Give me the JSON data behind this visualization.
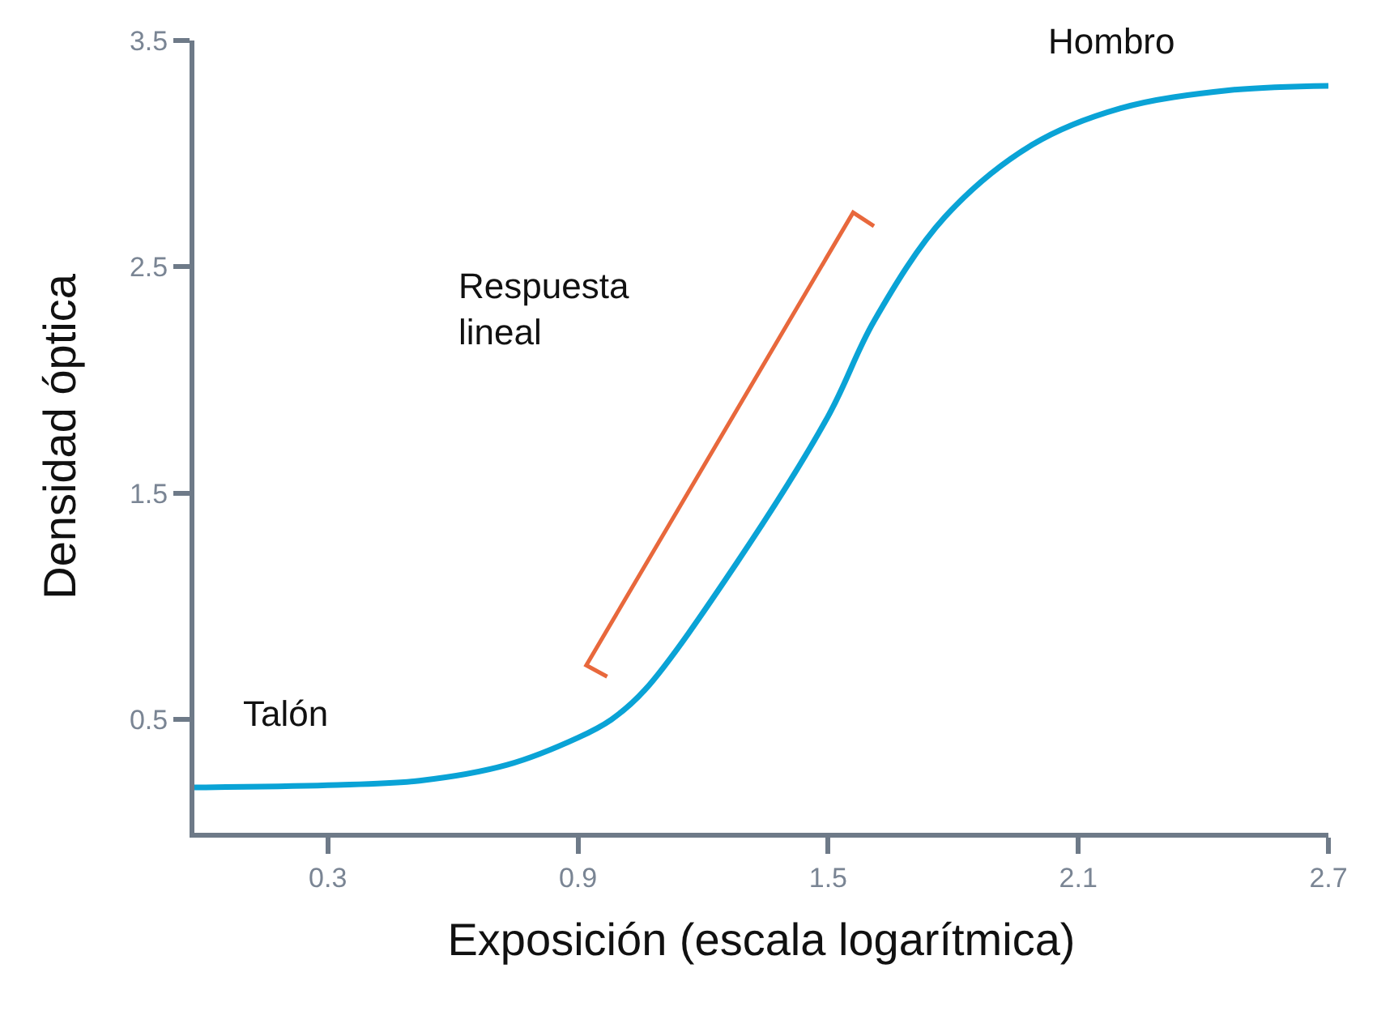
{
  "chart_data": {
    "type": "line",
    "xlabel": "Exposición (escala logarítmica)",
    "ylabel": "Densidad óptica",
    "x": [
      -0.02,
      0.3,
      0.52,
      0.73,
      0.9,
      0.98,
      1.06,
      1.28,
      1.5,
      1.61,
      1.78,
      1.99,
      2.2,
      2.46,
      2.7
    ],
    "series": [
      {
        "color": "#0aa3d6",
        "values": [
          0.2,
          0.21,
          0.23,
          0.3,
          0.42,
          0.5,
          0.63,
          1.19,
          1.84,
          2.26,
          2.72,
          3.04,
          3.2,
          3.28,
          3.3
        ]
      }
    ],
    "xlim": [
      -0.02,
      2.7
    ],
    "xticks": [
      0.3,
      0.9,
      1.5,
      2.1,
      2.7
    ],
    "ylim": [
      0,
      3.5
    ],
    "yticks": [
      0.5,
      1.5,
      2.5,
      3.5
    ],
    "legend": false,
    "marker": "none",
    "line_style": "solid",
    "annotations": [
      "Talón",
      "Respuesta\nlineal",
      "Hombro"
    ]
  }
}
